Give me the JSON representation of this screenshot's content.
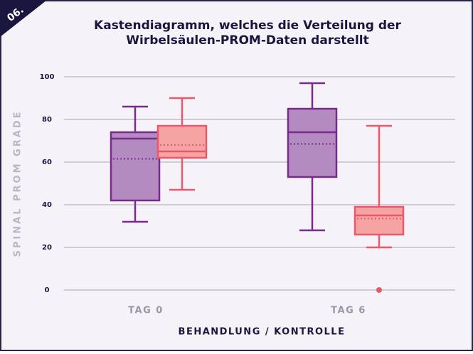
{
  "badge": "06.",
  "chart_data": {
    "type": "box",
    "title": [
      "Kastendiagramm, welches die Verteilung der",
      "Wirbelsäulen-PROM-Daten darstellt"
    ],
    "x_label": "BEHANDLUNG / KONTROLLE",
    "y_label": "SPINAL PROM GRADE",
    "categories": [
      "TAG 0",
      "TAG 6"
    ],
    "ylim": [
      0,
      100
    ],
    "yticks": [
      0,
      20,
      40,
      60,
      80,
      100
    ],
    "grid": true,
    "series": [
      {
        "color": "#7a2a8c",
        "fill": "#b38bc1",
        "boxes": [
          {
            "min": 32,
            "q1": 42,
            "median": 71,
            "q3": 74,
            "max": 86,
            "mean": 61.5,
            "outliers": []
          },
          {
            "min": 28,
            "q1": 53,
            "median": 74,
            "q3": 85,
            "max": 97,
            "mean": 68.5,
            "outliers": []
          }
        ]
      },
      {
        "color": "#e9586b",
        "fill": "#f5a3a3",
        "boxes": [
          {
            "min": 47,
            "q1": 62,
            "median": 65,
            "q3": 77,
            "max": 90,
            "mean": 68,
            "outliers": []
          },
          {
            "min": 20,
            "q1": 26,
            "median": 35,
            "q3": 39,
            "max": 77,
            "mean": 33.5,
            "outliers": [
              0
            ]
          }
        ]
      }
    ]
  }
}
